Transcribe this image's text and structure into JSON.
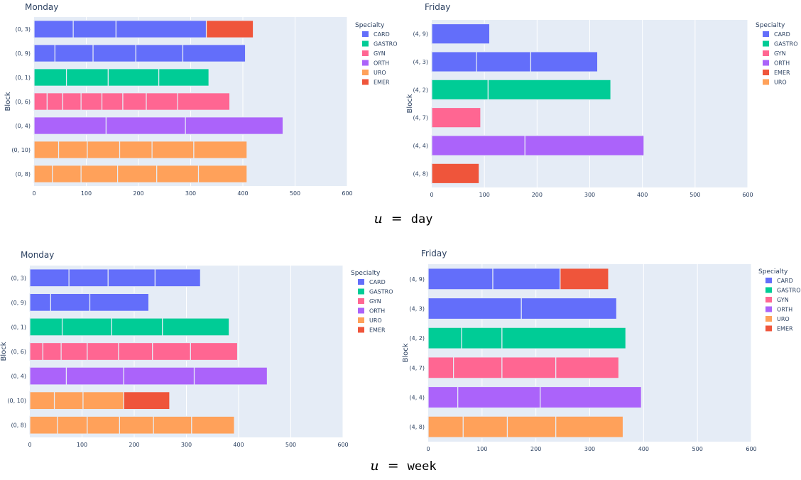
{
  "colors": {
    "CARD": "#636efa",
    "GASTRO": "#00cc96",
    "GYN": "#ff6692",
    "ORTH": "#ab63fa",
    "URO": "#ffa15a",
    "EMER": "#ef553b",
    "plot_bg": "#e5ecf6",
    "grid": "#ffffff",
    "text": "#2a3f5f"
  },
  "captions": {
    "day": {
      "var": "u",
      "eq": "=",
      "value": "day"
    },
    "week": {
      "var": "u",
      "eq": "=",
      "value": "week"
    }
  },
  "chart_data": [
    {
      "type": "bar",
      "orientation": "horizontal",
      "stacked": true,
      "title": "Monday",
      "ylabel": "Block",
      "xlabel": "",
      "xlim": [
        0,
        600
      ],
      "xticks": [
        0,
        100,
        200,
        300,
        400,
        500,
        600
      ],
      "grid": true,
      "legend": {
        "title": "Specialty",
        "entries": [
          "CARD",
          "GASTRO",
          "GYN",
          "ORTH",
          "URO",
          "EMER"
        ],
        "placement": "right"
      },
      "categories": [
        "(0, 3)",
        "(0, 9)",
        "(0, 1)",
        "(0, 6)",
        "(0, 4)",
        "(0, 10)",
        "(0, 8)"
      ],
      "segments": [
        [
          {
            "s": "CARD",
            "v": 75
          },
          {
            "s": "CARD",
            "v": 82
          },
          {
            "s": "CARD",
            "v": 173
          },
          {
            "s": "EMER",
            "v": 90
          }
        ],
        [
          {
            "s": "CARD",
            "v": 40
          },
          {
            "s": "CARD",
            "v": 73
          },
          {
            "s": "CARD",
            "v": 82
          },
          {
            "s": "CARD",
            "v": 90
          },
          {
            "s": "CARD",
            "v": 120
          }
        ],
        [
          {
            "s": "GASTRO",
            "v": 62
          },
          {
            "s": "GASTRO",
            "v": 80
          },
          {
            "s": "GASTRO",
            "v": 97
          },
          {
            "s": "GASTRO",
            "v": 96
          }
        ],
        [
          {
            "s": "GYN",
            "v": 25
          },
          {
            "s": "GYN",
            "v": 30
          },
          {
            "s": "GYN",
            "v": 35
          },
          {
            "s": "GYN",
            "v": 40
          },
          {
            "s": "GYN",
            "v": 40
          },
          {
            "s": "GYN",
            "v": 45
          },
          {
            "s": "GYN",
            "v": 60
          },
          {
            "s": "GYN",
            "v": 100
          }
        ],
        [
          {
            "s": "ORTH",
            "v": 138
          },
          {
            "s": "ORTH",
            "v": 152
          },
          {
            "s": "ORTH",
            "v": 187
          }
        ],
        [
          {
            "s": "URO",
            "v": 47
          },
          {
            "s": "URO",
            "v": 55
          },
          {
            "s": "URO",
            "v": 62
          },
          {
            "s": "URO",
            "v": 62
          },
          {
            "s": "URO",
            "v": 80
          },
          {
            "s": "URO",
            "v": 102
          }
        ],
        [
          {
            "s": "URO",
            "v": 35
          },
          {
            "s": "URO",
            "v": 55
          },
          {
            "s": "URO",
            "v": 70
          },
          {
            "s": "URO",
            "v": 75
          },
          {
            "s": "URO",
            "v": 80
          },
          {
            "s": "URO",
            "v": 93
          }
        ]
      ]
    },
    {
      "type": "bar",
      "orientation": "horizontal",
      "stacked": true,
      "title": "Friday",
      "ylabel": "Block",
      "xlabel": "",
      "xlim": [
        0,
        600
      ],
      "xticks": [
        0,
        100,
        200,
        300,
        400,
        500,
        600
      ],
      "grid": true,
      "legend": {
        "title": "Specialty",
        "entries": [
          "CARD",
          "GASTRO",
          "GYN",
          "ORTH",
          "EMER",
          "URO"
        ],
        "placement": "right"
      },
      "categories": [
        "(4, 9)",
        "(4, 3)",
        "(4, 2)",
        "(4, 7)",
        "(4, 4)",
        "(4, 8)"
      ],
      "segments": [
        [
          {
            "s": "CARD",
            "v": 110
          }
        ],
        [
          {
            "s": "CARD",
            "v": 85
          },
          {
            "s": "CARD",
            "v": 103
          },
          {
            "s": "CARD",
            "v": 127
          }
        ],
        [
          {
            "s": "GASTRO",
            "v": 107
          },
          {
            "s": "GASTRO",
            "v": 233
          }
        ],
        [
          {
            "s": "GYN",
            "v": 93
          }
        ],
        [
          {
            "s": "ORTH",
            "v": 177
          },
          {
            "s": "ORTH",
            "v": 226
          }
        ],
        [
          {
            "s": "EMER",
            "v": 90
          }
        ]
      ]
    },
    {
      "type": "bar",
      "orientation": "horizontal",
      "stacked": true,
      "title": "Monday",
      "ylabel": "Block",
      "xlabel": "",
      "xlim": [
        0,
        600
      ],
      "xticks": [
        0,
        100,
        200,
        300,
        400,
        500,
        600
      ],
      "grid": true,
      "legend": {
        "title": "Specialty",
        "entries": [
          "CARD",
          "GASTRO",
          "GYN",
          "ORTH",
          "URO",
          "EMER"
        ],
        "placement": "right"
      },
      "categories": [
        "(0, 3)",
        "(0, 9)",
        "(0, 1)",
        "(0, 6)",
        "(0, 4)",
        "(0, 10)",
        "(0, 8)"
      ],
      "segments": [
        [
          {
            "s": "CARD",
            "v": 75
          },
          {
            "s": "CARD",
            "v": 75
          },
          {
            "s": "CARD",
            "v": 90
          },
          {
            "s": "CARD",
            "v": 87
          }
        ],
        [
          {
            "s": "CARD",
            "v": 40
          },
          {
            "s": "CARD",
            "v": 75
          },
          {
            "s": "CARD",
            "v": 113
          }
        ],
        [
          {
            "s": "GASTRO",
            "v": 62
          },
          {
            "s": "GASTRO",
            "v": 95
          },
          {
            "s": "GASTRO",
            "v": 97
          },
          {
            "s": "GASTRO",
            "v": 128
          }
        ],
        [
          {
            "s": "GYN",
            "v": 25
          },
          {
            "s": "GYN",
            "v": 35
          },
          {
            "s": "GYN",
            "v": 50
          },
          {
            "s": "GYN",
            "v": 60
          },
          {
            "s": "GYN",
            "v": 65
          },
          {
            "s": "GYN",
            "v": 73
          },
          {
            "s": "GYN",
            "v": 90
          }
        ],
        [
          {
            "s": "ORTH",
            "v": 70
          },
          {
            "s": "ORTH",
            "v": 110
          },
          {
            "s": "ORTH",
            "v": 135
          },
          {
            "s": "ORTH",
            "v": 140
          }
        ],
        [
          {
            "s": "URO",
            "v": 47
          },
          {
            "s": "URO",
            "v": 55
          },
          {
            "s": "URO",
            "v": 78
          },
          {
            "s": "EMER",
            "v": 88
          }
        ],
        [
          {
            "s": "URO",
            "v": 53
          },
          {
            "s": "URO",
            "v": 57
          },
          {
            "s": "URO",
            "v": 62
          },
          {
            "s": "URO",
            "v": 65
          },
          {
            "s": "URO",
            "v": 73
          },
          {
            "s": "URO",
            "v": 82
          }
        ]
      ]
    },
    {
      "type": "bar",
      "orientation": "horizontal",
      "stacked": true,
      "title": "Friday",
      "ylabel": "Block",
      "xlabel": "",
      "xlim": [
        0,
        600
      ],
      "xticks": [
        0,
        100,
        200,
        300,
        400,
        500,
        600
      ],
      "grid": true,
      "legend": {
        "title": "Specialty",
        "entries": [
          "CARD",
          "GASTRO",
          "GYN",
          "ORTH",
          "URO",
          "EMER"
        ],
        "placement": "right"
      },
      "categories": [
        "(4, 9)",
        "(4, 3)",
        "(4, 2)",
        "(4, 7)",
        "(4, 4)",
        "(4, 8)"
      ],
      "segments": [
        [
          {
            "s": "CARD",
            "v": 120
          },
          {
            "s": "CARD",
            "v": 125
          },
          {
            "s": "EMER",
            "v": 90
          }
        ],
        [
          {
            "s": "CARD",
            "v": 173
          },
          {
            "s": "CARD",
            "v": 177
          }
        ],
        [
          {
            "s": "GASTRO",
            "v": 62
          },
          {
            "s": "GASTRO",
            "v": 75
          },
          {
            "s": "GASTRO",
            "v": 230
          }
        ],
        [
          {
            "s": "GYN",
            "v": 47
          },
          {
            "s": "GYN",
            "v": 90
          },
          {
            "s": "GYN",
            "v": 100
          },
          {
            "s": "GYN",
            "v": 117
          }
        ],
        [
          {
            "s": "ORTH",
            "v": 55
          },
          {
            "s": "ORTH",
            "v": 153
          },
          {
            "s": "ORTH",
            "v": 188
          }
        ],
        [
          {
            "s": "URO",
            "v": 65
          },
          {
            "s": "URO",
            "v": 82
          },
          {
            "s": "URO",
            "v": 90
          },
          {
            "s": "URO",
            "v": 125
          }
        ]
      ]
    }
  ]
}
